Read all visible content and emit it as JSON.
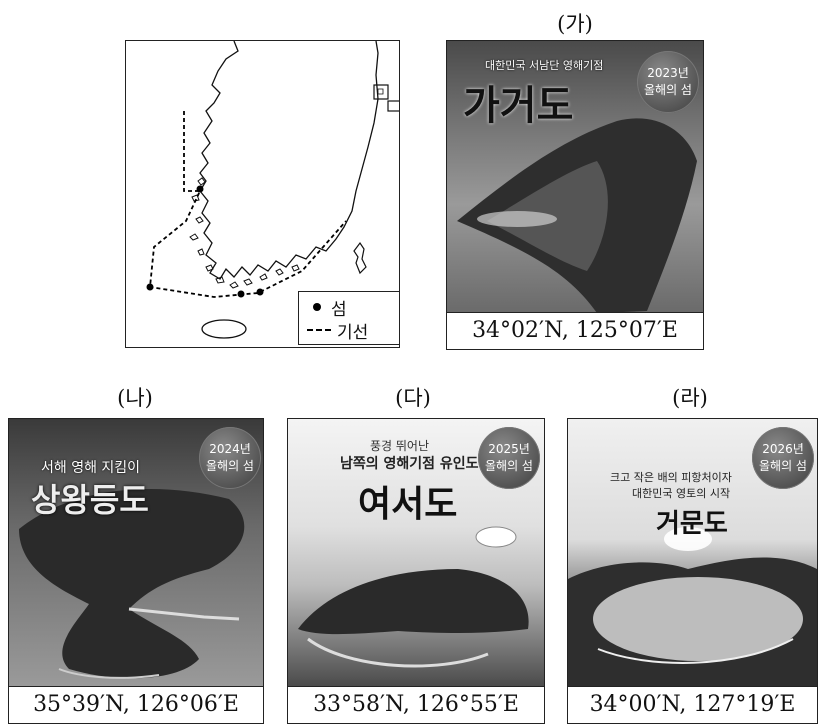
{
  "panels": [
    {
      "id": "ga",
      "label": "(가)",
      "subtitle": "대한민국 서남단 영해기점",
      "title": "가거도",
      "badge_year": "2023년",
      "badge_text": "올해의 섬",
      "coord": "34°02′N, 125°07′E"
    },
    {
      "id": "na",
      "label": "(나)",
      "subtitle": "서해 영해 지킴이",
      "title": "상왕등도",
      "badge_year": "2024년",
      "badge_text": "올해의 섬",
      "coord": "35°39′N, 126°06′E"
    },
    {
      "id": "da",
      "label": "(다)",
      "subtitle_top": "풍경 뛰어난",
      "subtitle": "남쪽의 영해기점 유인도",
      "title": "여서도",
      "badge_year": "2025년",
      "badge_text": "올해의 섬",
      "coord": "33°58′N, 126°55′E"
    },
    {
      "id": "ra",
      "label": "(라)",
      "subtitle_top": "크고 작은 배의 피항처이자",
      "subtitle": "대한민국 영토의 시작",
      "title": "거문도",
      "badge_year": "2026년",
      "badge_text": "올해의 섬",
      "coord": "34°00′N, 127°19′E"
    }
  ],
  "map": {
    "legend": {
      "island": "섬",
      "baseline": "기선"
    }
  },
  "colors": {
    "border": "#222222",
    "dark_sea": "#3c3c3c",
    "light_sea": "#bdbdbd"
  }
}
